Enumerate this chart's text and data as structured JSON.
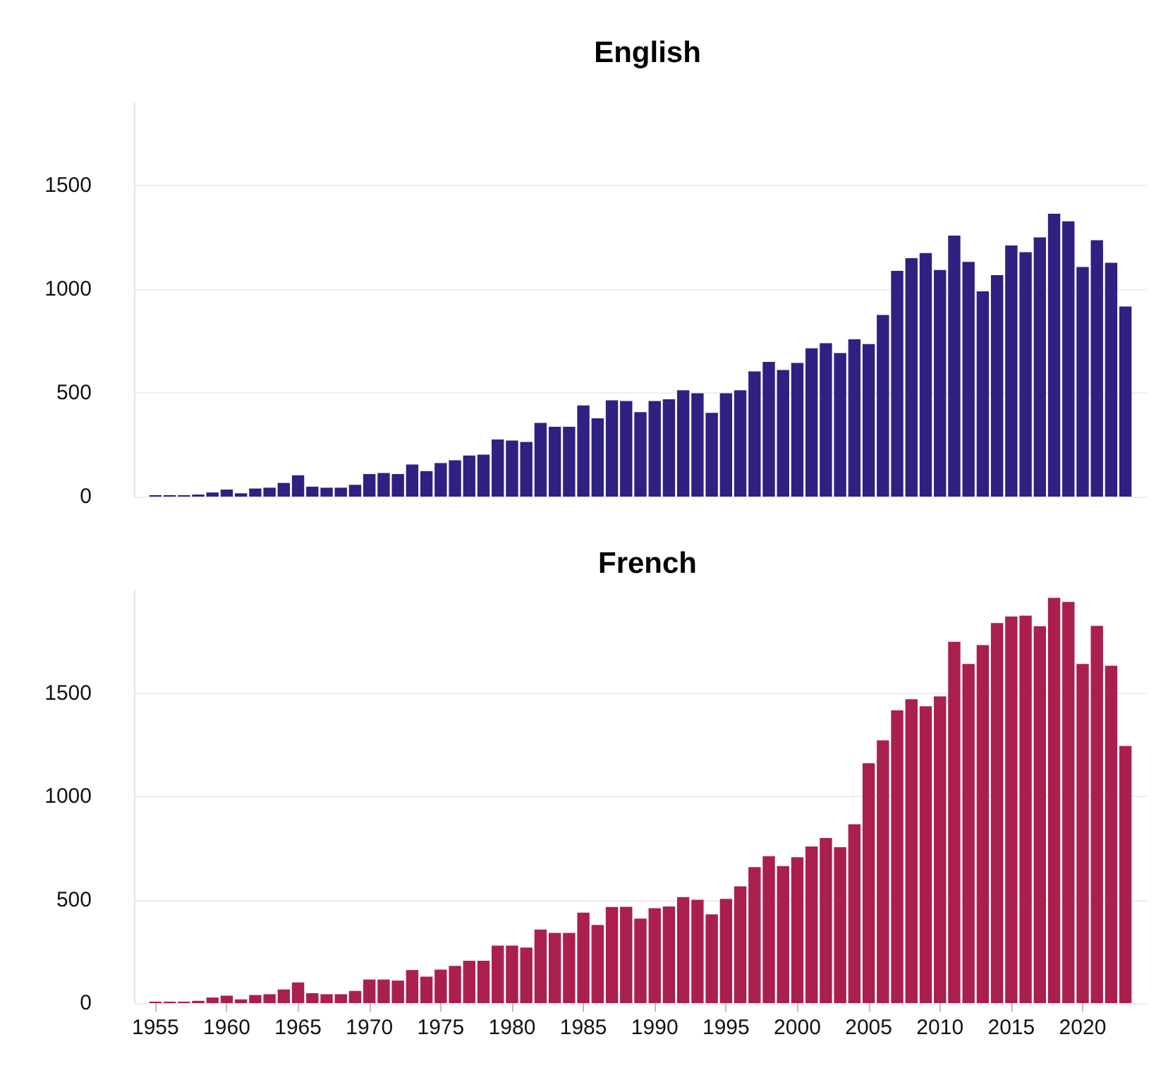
{
  "chart_data": [
    {
      "type": "bar",
      "title": "English",
      "x": [
        1955,
        1956,
        1957,
        1958,
        1959,
        1960,
        1961,
        1962,
        1963,
        1964,
        1965,
        1966,
        1967,
        1968,
        1969,
        1970,
        1971,
        1972,
        1973,
        1974,
        1975,
        1976,
        1977,
        1978,
        1979,
        1980,
        1981,
        1982,
        1983,
        1984,
        1985,
        1986,
        1987,
        1988,
        1989,
        1990,
        1991,
        1992,
        1993,
        1994,
        1995,
        1996,
        1997,
        1998,
        1999,
        2000,
        2001,
        2002,
        2003,
        2004,
        2005,
        2006,
        2007,
        2008,
        2009,
        2010,
        2011,
        2012,
        2013,
        2014,
        2015,
        2016,
        2017,
        2018,
        2019,
        2020,
        2021,
        2022,
        2023
      ],
      "values": [
        7,
        7,
        7,
        10,
        20,
        34,
        16,
        39,
        43,
        66,
        103,
        48,
        43,
        43,
        57,
        109,
        114,
        109,
        155,
        123,
        162,
        175,
        198,
        203,
        276,
        271,
        264,
        356,
        337,
        337,
        440,
        378,
        465,
        461,
        408,
        461,
        470,
        513,
        499,
        404,
        499,
        513,
        604,
        650,
        611,
        645,
        716,
        741,
        693,
        759,
        736,
        877,
        1090,
        1151,
        1176,
        1094,
        1260,
        1133,
        991,
        1069,
        1212,
        1180,
        1251,
        1365,
        1329,
        1108,
        1238,
        1129,
        918
      ],
      "color": "#2e2182",
      "xlim": [
        1953.5,
        2024.5
      ],
      "xticks": [
        1955,
        1960,
        1965,
        1970,
        1975,
        1980,
        1985,
        1990,
        1995,
        2000,
        2005,
        2010,
        2015,
        2020
      ],
      "ylim": [
        0,
        1900
      ],
      "yticks": [
        0,
        500,
        1000,
        1500
      ],
      "grid": "y",
      "tick_labels": "y"
    },
    {
      "type": "bar",
      "title": "French",
      "x": [
        1955,
        1956,
        1957,
        1958,
        1959,
        1960,
        1961,
        1962,
        1963,
        1964,
        1965,
        1966,
        1967,
        1968,
        1969,
        1970,
        1971,
        1972,
        1973,
        1974,
        1975,
        1976,
        1977,
        1978,
        1979,
        1980,
        1981,
        1982,
        1983,
        1984,
        1985,
        1986,
        1987,
        1988,
        1989,
        1990,
        1991,
        1992,
        1993,
        1994,
        1995,
        1996,
        1997,
        1998,
        1999,
        2000,
        2001,
        2002,
        2003,
        2004,
        2005,
        2006,
        2007,
        2008,
        2009,
        2010,
        2011,
        2012,
        2013,
        2014,
        2015,
        2016,
        2017,
        2018,
        2019,
        2020,
        2021,
        2022,
        2023
      ],
      "values": [
        7,
        7,
        7,
        11,
        27,
        36,
        18,
        39,
        43,
        66,
        100,
        48,
        43,
        43,
        59,
        114,
        114,
        109,
        160,
        128,
        162,
        180,
        205,
        205,
        278,
        278,
        269,
        356,
        340,
        340,
        438,
        378,
        465,
        466,
        409,
        459,
        468,
        513,
        500,
        429,
        504,
        565,
        658,
        711,
        663,
        706,
        758,
        799,
        754,
        865,
        1160,
        1271,
        1416,
        1470,
        1436,
        1484,
        1748,
        1641,
        1732,
        1839,
        1870,
        1875,
        1823,
        1961,
        1941,
        1641,
        1825,
        1632,
        1244
      ],
      "color": "#ab1f4e",
      "xlim": [
        1953.5,
        2024.5
      ],
      "xticks": [
        1955,
        1960,
        1965,
        1970,
        1975,
        1980,
        1985,
        1990,
        1995,
        2000,
        2005,
        2010,
        2015,
        2020
      ],
      "ylim": [
        0,
        2000
      ],
      "yticks": [
        0,
        500,
        1000,
        1500
      ],
      "grid": "y"
    }
  ]
}
